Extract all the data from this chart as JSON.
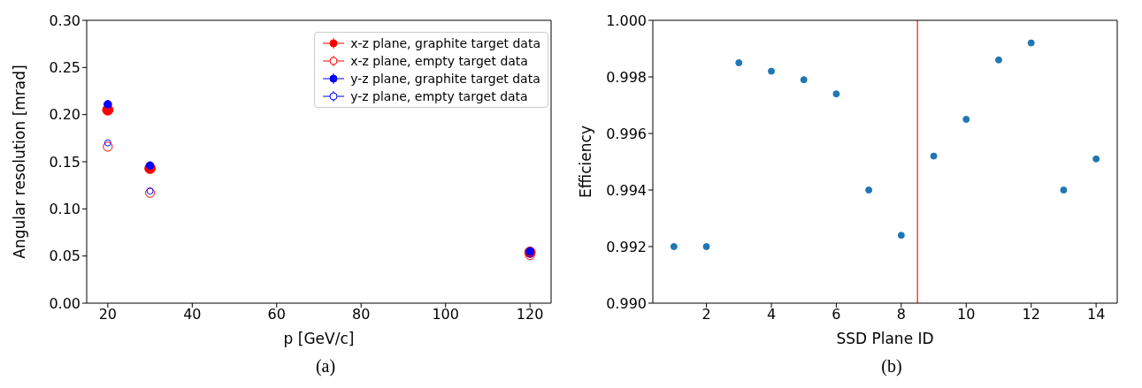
{
  "chart_data": [
    {
      "type": "scatter",
      "xlabel": "p [GeV/c]",
      "ylabel": "Angular resolution [mrad]",
      "x": [
        20,
        30,
        120
      ],
      "xlim": [
        15,
        125
      ],
      "xticks": [
        20,
        40,
        60,
        80,
        100,
        120
      ],
      "ylim": [
        0,
        0.3
      ],
      "yticks": [
        {
          "value": 0,
          "label": "0.00"
        },
        {
          "value": 0.05,
          "label": "0.05"
        },
        {
          "value": 0.1,
          "label": "0.10"
        },
        {
          "value": 0.15,
          "label": "0.15"
        },
        {
          "value": 0.2,
          "label": "0.20"
        },
        {
          "value": 0.25,
          "label": "0.25"
        },
        {
          "value": 0.3,
          "label": "0.30"
        }
      ],
      "grid": false,
      "legend": "top right",
      "marker": "circle",
      "annotations": [
        "(a)"
      ],
      "series": [
        {
          "name": "x-z plane, graphite target data",
          "color": "#ff0000",
          "values": [
            0.205,
            0.143,
            0.054
          ]
        },
        {
          "name": "x-z plane, empty target data",
          "color": "#ff0000",
          "marker": "circle-open",
          "values": [
            0.166,
            0.117,
            0.051
          ]
        },
        {
          "name": "y-z plane, graphite target data",
          "color": "#0000ff",
          "values": [
            0.211,
            0.146,
            0.055
          ]
        },
        {
          "name": "y-z plane, empty target data",
          "color": "#0000ff",
          "marker": "circle-open",
          "values": [
            0.17,
            0.119,
            0.052
          ]
        }
      ]
    },
    {
      "type": "scatter",
      "xlabel": "SSD Plane ID",
      "ylabel": "Efficiency",
      "x": [
        1,
        2,
        3,
        4,
        5,
        6,
        7,
        8,
        9,
        10,
        11,
        12,
        13,
        14
      ],
      "xlim": [
        0.35,
        14.65
      ],
      "xticks": [
        2,
        4,
        6,
        8,
        10,
        12,
        14
      ],
      "ylim": [
        0.99,
        1.0
      ],
      "yticks": [
        {
          "value": 0.99,
          "label": "0.990"
        },
        {
          "value": 0.992,
          "label": "0.992"
        },
        {
          "value": 0.994,
          "label": "0.994"
        },
        {
          "value": 0.996,
          "label": "0.996"
        },
        {
          "value": 0.998,
          "label": "0.998"
        },
        {
          "value": 1.0,
          "label": "1.000"
        }
      ],
      "grid": false,
      "marker": "circle",
      "annotations": [
        "(b)"
      ],
      "series": [
        {
          "color": "#1f77b4",
          "values": [
            0.992,
            0.992,
            0.9985,
            0.9982,
            0.9979,
            0.9974,
            0.994,
            0.9924,
            0.9952,
            0.9965,
            0.9986,
            0.9992,
            0.994,
            0.9951
          ]
        }
      ],
      "ref_lines": [
        {
          "axis": "x",
          "value": 8.5,
          "color": "#ff4040",
          "line_style": "solid"
        }
      ]
    }
  ]
}
